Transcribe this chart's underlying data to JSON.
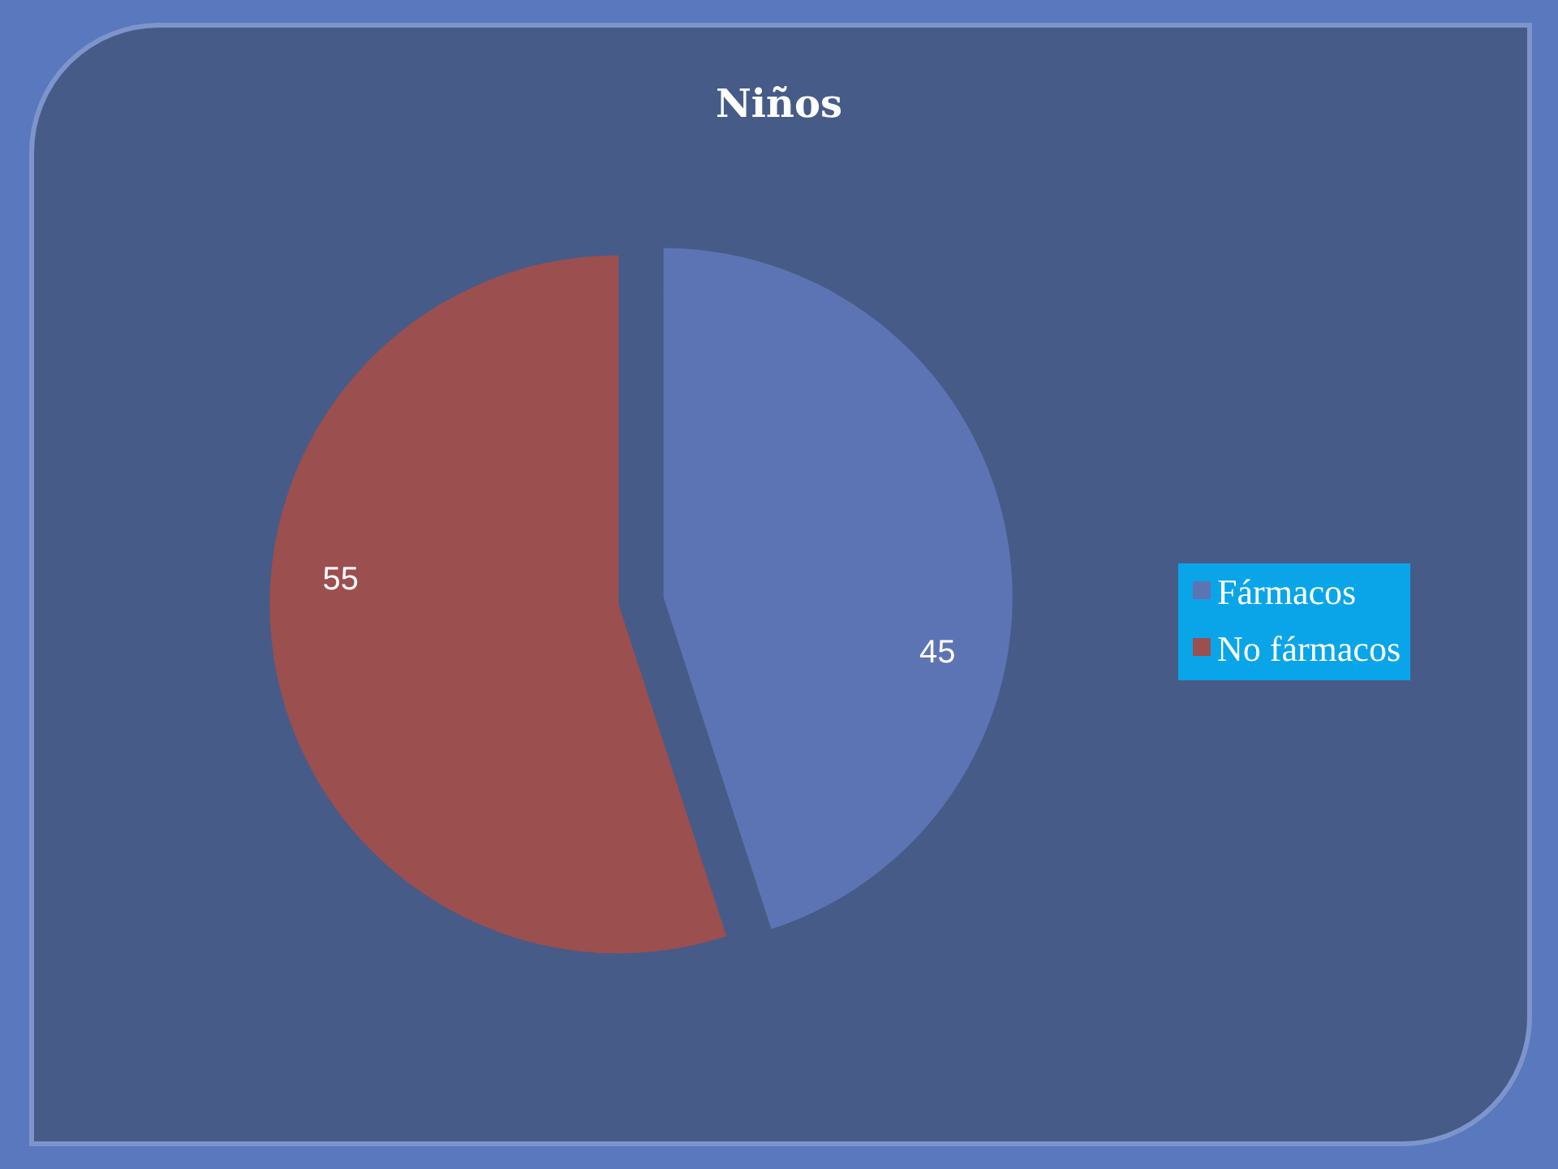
{
  "chart_data": {
    "type": "pie",
    "title": "Niños",
    "categories": [
      "Fármacos",
      "No fármacos"
    ],
    "values": [
      45,
      55
    ],
    "colors": [
      "#5d74b4",
      "#9b4f4f"
    ],
    "data_labels": true,
    "legend": "right"
  }
}
